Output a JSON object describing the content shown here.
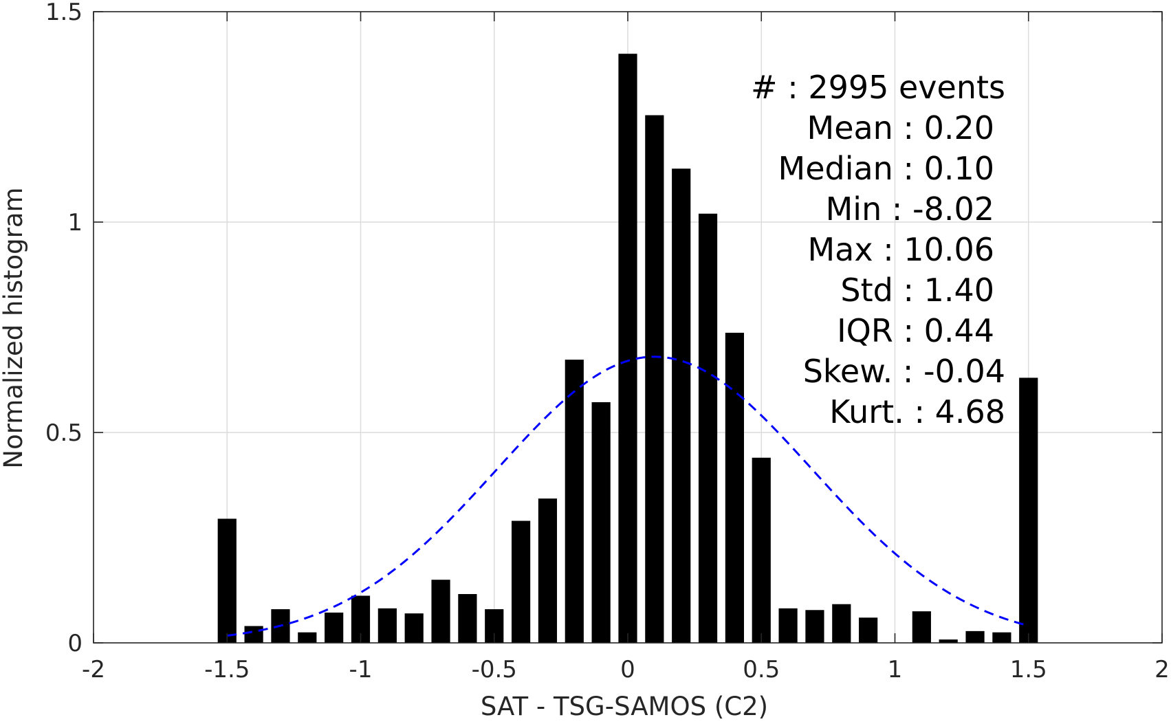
{
  "chart_data": {
    "type": "bar",
    "title": "",
    "xlabel": "SAT - TSG-SAMOS (C2)",
    "ylabel": "Normalized histogram",
    "xlim": [
      -2,
      2
    ],
    "ylim": [
      0,
      1.5
    ],
    "xticks": [
      -2,
      -1.5,
      -1,
      -0.5,
      0,
      0.5,
      1,
      1.5,
      2
    ],
    "xtick_labels": [
      "-2",
      "-1.5",
      "-1",
      "-0.5",
      "0",
      "0.5",
      "1",
      "1.5",
      "2"
    ],
    "yticks": [
      0,
      0.5,
      1,
      1.5
    ],
    "ytick_labels": [
      "0",
      "0.5",
      "1",
      "1.5"
    ],
    "grid": true,
    "bar_color": "#000000",
    "bar_width": 0.07,
    "bins": [
      -1.5,
      -1.4,
      -1.3,
      -1.2,
      -1.1,
      -1.0,
      -0.9,
      -0.8,
      -0.7,
      -0.6,
      -0.5,
      -0.4,
      -0.3,
      -0.2,
      -0.1,
      0.0,
      0.1,
      0.2,
      0.3,
      0.4,
      0.5,
      0.6,
      0.7,
      0.8,
      0.9,
      1.0,
      1.1,
      1.2,
      1.3,
      1.4,
      1.5
    ],
    "values": [
      0.295,
      0.04,
      0.08,
      0.025,
      0.072,
      0.112,
      0.082,
      0.07,
      0.15,
      0.116,
      0.08,
      0.29,
      0.343,
      0.673,
      0.572,
      1.4,
      1.254,
      1.127,
      1.02,
      0.737,
      0.44,
      0.082,
      0.078,
      0.092,
      0.06,
      0.0,
      0.075,
      0.008,
      0.028,
      0.025,
      0.63
    ],
    "fit_curve": {
      "type": "normal",
      "mean": 0.1,
      "std": 0.59,
      "peak": 0.68,
      "x_range": [
        -1.5,
        1.5
      ],
      "color": "#0000ff",
      "style": "dashed"
    },
    "stats_lines": [
      "#  : 2995 events",
      "Mean : 0.20",
      "Median : 0.10",
      "Min : -8.02",
      "Max : 10.06",
      "Std : 1.40",
      "IQR : 0.44",
      "Skew. : -0.04",
      "Kurt. : 4.68"
    ]
  }
}
